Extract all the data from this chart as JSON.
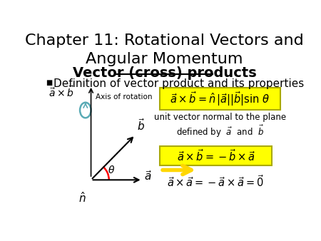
{
  "title": "Chapter 11: Rotational Vectors and\nAngular Momentum",
  "subtitle": "Vector (cross) products",
  "bullet": "Definition of vector product and its properties",
  "bg_color": "#ffffff",
  "title_fontsize": 16,
  "subtitle_fontsize": 14,
  "bullet_fontsize": 11,
  "yellow_color": "#FFFF00",
  "yellow_border": "#CCCC00",
  "arrow_color": "#FFD700"
}
